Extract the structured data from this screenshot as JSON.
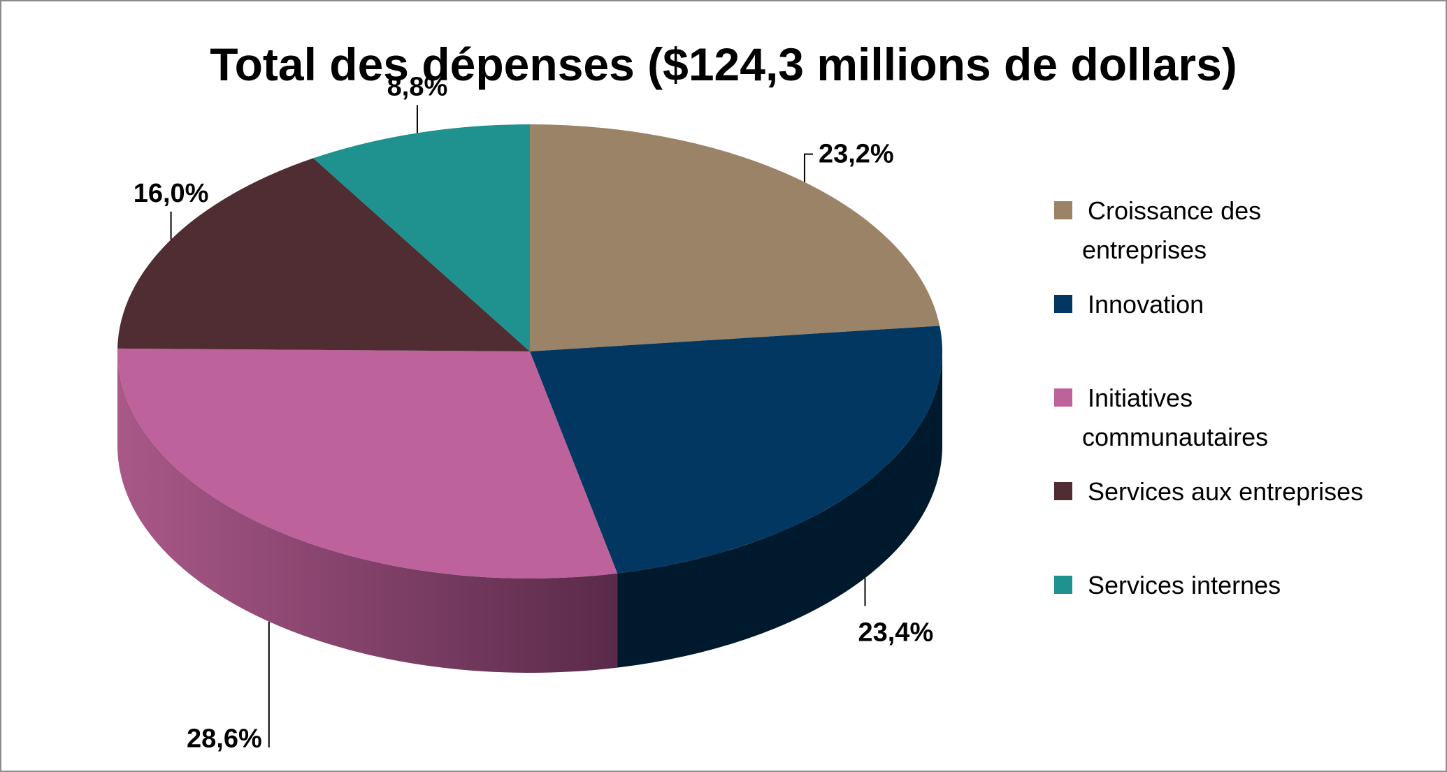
{
  "chart_data": {
    "type": "pie",
    "title": "Total des dépenses ($124,3 millions de dollars)",
    "slices": [
      {
        "name": "Croissance des entreprises",
        "legend_lines": [
          "Croissance des",
          "entreprises"
        ],
        "value": 23.2,
        "label": "23,2%",
        "color": "#9b8367"
      },
      {
        "name": "Innovation",
        "legend_lines": [
          "Innovation"
        ],
        "value": 23.4,
        "label": "23,4%",
        "color": "#023761"
      },
      {
        "name": "Initiatives communautaires",
        "legend_lines": [
          "Initiatives",
          "communautaires"
        ],
        "value": 28.6,
        "label": "28,6%",
        "color": "#bd629b"
      },
      {
        "name": "Services aux entreprises",
        "legend_lines": [
          "Services aux entreprises"
        ],
        "value": 16.0,
        "label": "16,0%",
        "color": "#4f2d32"
      },
      {
        "name": "Services internes",
        "legend_lines": [
          "Services internes"
        ],
        "value": 8.8,
        "label": "8,8%",
        "color": "#1f918e"
      }
    ],
    "legend_position": "right",
    "style": "3d-exploded-perspective"
  }
}
